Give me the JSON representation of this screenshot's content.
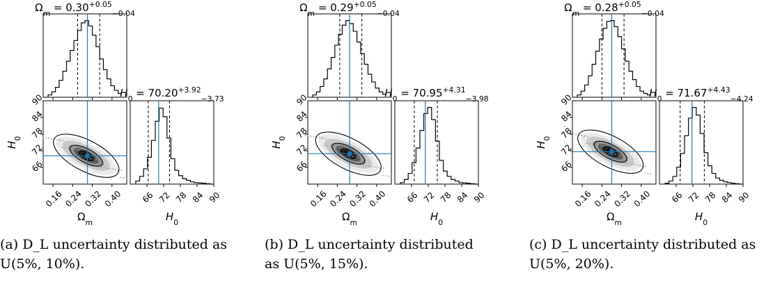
{
  "chart_data": [
    {
      "type": "corner",
      "omega_title": "Ω",
      "omega_sub": "m",
      "omega_value": " = 0.30",
      "omega_plus": "+0.05",
      "omega_minus": "−0.04",
      "h0_title": "H",
      "h0_sub": "0",
      "h0_value": " = 70.20",
      "h0_plus": "+3.92",
      "h0_minus": "−3.73",
      "omega_best": 0.3,
      "omega_lo": 0.26,
      "omega_hi": 0.35,
      "h0_best": 70.2,
      "h0_lo": 66.47,
      "h0_hi": 74.12,
      "omega_hist": [
        0.03,
        0.07,
        0.13,
        0.22,
        0.34,
        0.47,
        0.61,
        0.74,
        0.87,
        0.97,
        1.0,
        0.93,
        0.81,
        0.66,
        0.5,
        0.36,
        0.24,
        0.15,
        0.09,
        0.05
      ],
      "h0_hist": [
        0.04,
        0.1,
        0.2,
        0.35,
        0.57,
        0.82,
        0.99,
        0.88,
        0.6,
        0.33,
        0.18,
        0.11,
        0.07,
        0.05,
        0.03,
        0.02,
        0.015,
        0.01,
        0.005,
        0.0
      ],
      "omega_ticks": [
        "0.16",
        "0.24",
        "0.32",
        "0.40"
      ],
      "h0_ticks": [
        "66",
        "72",
        "78",
        "84",
        "90"
      ],
      "xlabel_omega": "Ω",
      "xlabel_omega_sub": "m",
      "xlabel_h0": "H",
      "xlabel_h0_sub": "0",
      "ylabel_h0": "H",
      "ylabel_h0_sub": "0",
      "omega_range": [
        0.12,
        0.46
      ],
      "h0_range": [
        60,
        90
      ],
      "caption_line1": "(a) D_L uncertainty distributed as",
      "caption_line2": "U(5%, 10%)."
    },
    {
      "type": "corner",
      "omega_title": "Ω",
      "omega_sub": "m",
      "omega_value": " = 0.29",
      "omega_plus": "+0.05",
      "omega_minus": "−0.04",
      "h0_title": "H",
      "h0_sub": "0",
      "h0_value": " = 70.95",
      "h0_plus": "+4.31",
      "h0_minus": "−3.98",
      "omega_best": 0.29,
      "omega_lo": 0.25,
      "omega_hi": 0.34,
      "h0_best": 70.95,
      "h0_lo": 66.97,
      "h0_hi": 75.26,
      "omega_hist": [
        0.03,
        0.07,
        0.14,
        0.24,
        0.37,
        0.52,
        0.68,
        0.82,
        0.94,
        1.0,
        0.96,
        0.86,
        0.72,
        0.57,
        0.43,
        0.3,
        0.2,
        0.12,
        0.07,
        0.04
      ],
      "h0_hist": [
        0.02,
        0.06,
        0.14,
        0.28,
        0.47,
        0.7,
        0.92,
        1.0,
        0.84,
        0.56,
        0.31,
        0.17,
        0.1,
        0.06,
        0.04,
        0.02,
        0.015,
        0.01,
        0.005,
        0.0
      ],
      "omega_ticks": [
        "0.16",
        "0.24",
        "0.32",
        "0.40"
      ],
      "h0_ticks": [
        "66",
        "72",
        "78",
        "84",
        "90"
      ],
      "xlabel_omega": "Ω",
      "xlabel_omega_sub": "m",
      "xlabel_h0": "H",
      "xlabel_h0_sub": "0",
      "ylabel_h0": "H",
      "ylabel_h0_sub": "0",
      "omega_range": [
        0.12,
        0.46
      ],
      "h0_range": [
        60,
        90
      ],
      "caption_line1": "(b)  D_L  uncertainty  distributed",
      "caption_line2": "as U(5%, 15%)."
    },
    {
      "type": "corner",
      "omega_title": "Ω",
      "omega_sub": "m",
      "omega_value": " = 0.28",
      "omega_plus": "+0.05",
      "omega_minus": "−0.04",
      "h0_title": "H",
      "h0_sub": "0",
      "h0_value": " = 71.67",
      "h0_plus": "+4.43",
      "h0_minus": "−4.24",
      "omega_best": 0.28,
      "omega_lo": 0.24,
      "omega_hi": 0.33,
      "h0_best": 71.67,
      "h0_lo": 67.43,
      "h0_hi": 76.1,
      "omega_hist": [
        0.03,
        0.08,
        0.16,
        0.28,
        0.43,
        0.6,
        0.76,
        0.9,
        0.99,
        1.0,
        0.92,
        0.79,
        0.63,
        0.47,
        0.34,
        0.23,
        0.14,
        0.08,
        0.05,
        0.03
      ],
      "h0_hist": [
        0.01,
        0.04,
        0.1,
        0.22,
        0.4,
        0.63,
        0.86,
        1.0,
        0.9,
        0.66,
        0.41,
        0.24,
        0.14,
        0.08,
        0.05,
        0.03,
        0.02,
        0.01,
        0.005,
        0.0
      ],
      "omega_ticks": [
        "0.16",
        "0.24",
        "0.32",
        "0.40"
      ],
      "h0_ticks": [
        "66",
        "72",
        "78",
        "84",
        "90"
      ],
      "xlabel_omega": "Ω",
      "xlabel_omega_sub": "m",
      "xlabel_h0": "H",
      "xlabel_h0_sub": "0",
      "ylabel_h0": "H",
      "ylabel_h0_sub": "0",
      "omega_range": [
        0.12,
        0.46
      ],
      "h0_range": [
        60,
        90
      ],
      "caption_line1": "(c) D_L uncertainty distributed as",
      "caption_line2": "U(5%, 20%)."
    }
  ],
  "colors": {
    "truth_line": "#1f77b4",
    "contour": "#000000",
    "density": "#222222"
  }
}
